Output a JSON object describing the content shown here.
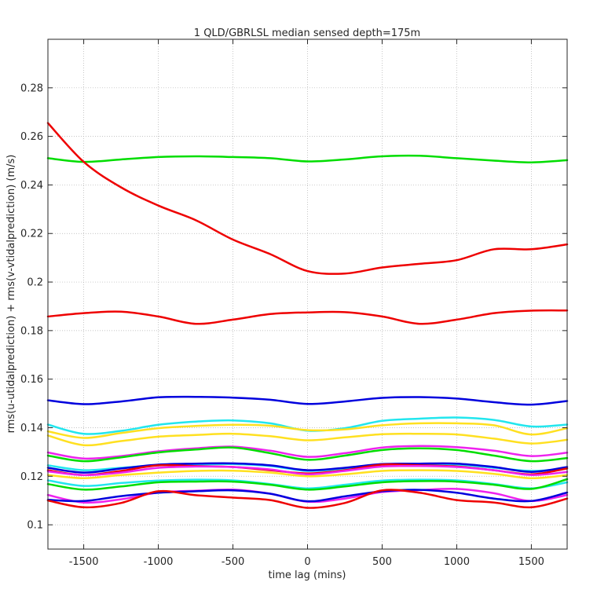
{
  "chart_data": {
    "type": "line",
    "title": "1 QLD/GBRLSL median sensed depth=175m",
    "xlabel": "time lag (mins)",
    "ylabel": "rms(u-utidalprediction) + rms(v-vtidalprediction) (m/s)",
    "xlim": [
      -1740,
      1740
    ],
    "ylim": [
      0.09,
      0.3
    ],
    "xticks": [
      -1500,
      -1000,
      -500,
      0,
      500,
      1000,
      1500
    ],
    "xtick_labels": [
      "-1500",
      "-1000",
      "-500",
      "0",
      "500",
      "1000",
      "1500"
    ],
    "yticks": [
      0.1,
      0.12,
      0.14,
      0.16,
      0.18,
      0.2,
      0.22,
      0.24,
      0.26,
      0.28
    ],
    "ytick_labels": [
      "0.1",
      "0.12",
      "0.14",
      "0.16",
      "0.18",
      "0.2",
      "0.22",
      "0.24",
      "0.26",
      "0.28"
    ],
    "grid": true,
    "x": [
      -1740,
      -1500,
      -1250,
      -1000,
      -750,
      -500,
      -250,
      0,
      250,
      500,
      750,
      1000,
      1250,
      1500,
      1740
    ],
    "series": [
      {
        "color": "#00dd00",
        "values": [
          0.251,
          0.2495,
          0.2505,
          0.2515,
          0.2518,
          0.2515,
          0.251,
          0.2497,
          0.2505,
          0.2518,
          0.252,
          0.251,
          0.25,
          0.2493,
          0.2502
        ]
      },
      {
        "color": "#ee0000",
        "values": [
          0.2655,
          0.2495,
          0.239,
          0.2315,
          0.2255,
          0.2175,
          0.2115,
          0.2045,
          0.2035,
          0.206,
          0.2075,
          0.209,
          0.2135,
          0.2135,
          0.2155
        ]
      },
      {
        "color": "#ee0000",
        "values": [
          0.1858,
          0.1872,
          0.1878,
          0.1858,
          0.1828,
          0.1845,
          0.1868,
          0.1875,
          0.1876,
          0.1858,
          0.1828,
          0.1845,
          0.1872,
          0.1882,
          0.1883
        ]
      },
      {
        "color": "#0000dd",
        "values": [
          0.1513,
          0.1497,
          0.1508,
          0.1525,
          0.1527,
          0.1524,
          0.1515,
          0.1498,
          0.1508,
          0.1523,
          0.1526,
          0.152,
          0.1505,
          0.1495,
          0.151
        ]
      },
      {
        "color": "#22e6ee",
        "values": [
          0.1413,
          0.1375,
          0.1387,
          0.1412,
          0.1425,
          0.143,
          0.1418,
          0.1388,
          0.1398,
          0.1428,
          0.1437,
          0.1442,
          0.1432,
          0.1405,
          0.1413
        ]
      },
      {
        "color": "#ffe020",
        "values": [
          0.1385,
          0.1358,
          0.1378,
          0.1398,
          0.1407,
          0.1412,
          0.1408,
          0.139,
          0.1393,
          0.141,
          0.1418,
          0.1418,
          0.141,
          0.1372,
          0.1398
        ]
      },
      {
        "color": "#ffe020",
        "values": [
          0.1368,
          0.1328,
          0.1345,
          0.1363,
          0.137,
          0.1375,
          0.1365,
          0.1348,
          0.136,
          0.1373,
          0.1375,
          0.1372,
          0.1355,
          0.1335,
          0.135
        ]
      },
      {
        "color": "#ee22ee",
        "values": [
          0.1298,
          0.1273,
          0.1283,
          0.1303,
          0.1315,
          0.1322,
          0.1305,
          0.128,
          0.1295,
          0.1318,
          0.1325,
          0.132,
          0.1305,
          0.1283,
          0.1297
        ]
      },
      {
        "color": "#00dd00",
        "values": [
          0.1285,
          0.1262,
          0.1278,
          0.1298,
          0.131,
          0.1318,
          0.1295,
          0.1268,
          0.1285,
          0.1308,
          0.1315,
          0.1308,
          0.1285,
          0.1262,
          0.1275
        ]
      },
      {
        "color": "#22e6ee",
        "values": [
          0.1245,
          0.1225,
          0.1235,
          0.1245,
          0.1248,
          0.125,
          0.1242,
          0.1222,
          0.1232,
          0.1246,
          0.125,
          0.1248,
          0.1235,
          0.1222,
          0.1232
        ]
      },
      {
        "color": "#0000dd",
        "values": [
          0.1235,
          0.1215,
          0.1232,
          0.1248,
          0.1252,
          0.1253,
          0.1245,
          0.1225,
          0.1235,
          0.125,
          0.1252,
          0.1252,
          0.1238,
          0.1218,
          0.1238
        ]
      },
      {
        "color": "#ee0000",
        "values": [
          0.1225,
          0.1205,
          0.1222,
          0.1245,
          0.1242,
          0.1238,
          0.1225,
          0.1212,
          0.1225,
          0.1248,
          0.1245,
          0.124,
          0.1225,
          0.1208,
          0.1232
        ]
      },
      {
        "color": "#ee22ee",
        "values": [
          0.122,
          0.1205,
          0.1215,
          0.1235,
          0.124,
          0.1238,
          0.1228,
          0.1208,
          0.1222,
          0.124,
          0.1242,
          0.1238,
          0.1225,
          0.1205,
          0.1218
        ]
      },
      {
        "color": "#ffe020",
        "values": [
          0.1205,
          0.1192,
          0.1205,
          0.1215,
          0.1222,
          0.1223,
          0.1215,
          0.12,
          0.1208,
          0.1222,
          0.1225,
          0.1222,
          0.121,
          0.1192,
          0.1205
        ]
      },
      {
        "color": "#22e6ee",
        "values": [
          0.1183,
          0.116,
          0.1172,
          0.1182,
          0.1186,
          0.1183,
          0.1168,
          0.115,
          0.1165,
          0.1182,
          0.1186,
          0.1183,
          0.1168,
          0.115,
          0.1175
        ]
      },
      {
        "color": "#00dd00",
        "values": [
          0.1168,
          0.1145,
          0.1158,
          0.1175,
          0.1178,
          0.1178,
          0.1165,
          0.1145,
          0.1158,
          0.1175,
          0.118,
          0.1178,
          0.1165,
          0.1148,
          0.1188
        ]
      },
      {
        "color": "#ee22ee",
        "values": [
          0.1123,
          0.1092,
          0.1105,
          0.1133,
          0.114,
          0.1145,
          0.1128,
          0.1095,
          0.1108,
          0.1135,
          0.1143,
          0.1148,
          0.113,
          0.1098,
          0.1123
        ]
      },
      {
        "color": "#0000dd",
        "values": [
          0.1103,
          0.1098,
          0.1118,
          0.1132,
          0.1138,
          0.1142,
          0.1128,
          0.1097,
          0.1117,
          0.1138,
          0.1144,
          0.1132,
          0.1108,
          0.1098,
          0.1133
        ]
      },
      {
        "color": "#ee0000",
        "values": [
          0.11,
          0.1072,
          0.109,
          0.1138,
          0.1122,
          0.1112,
          0.1102,
          0.107,
          0.109,
          0.1142,
          0.1132,
          0.1102,
          0.1092,
          0.1072,
          0.1108
        ]
      }
    ]
  }
}
